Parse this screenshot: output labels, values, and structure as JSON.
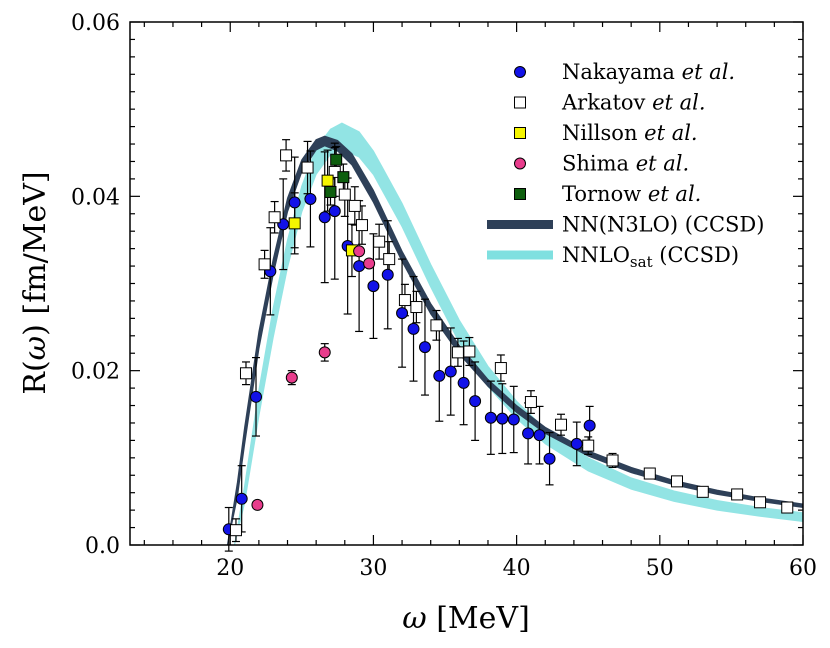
{
  "chart_data": {
    "type": "scatter",
    "xlabel": "ω [MeV]",
    "ylabel": "R(ω) [fm/MeV]",
    "xlim": [
      13,
      60
    ],
    "ylim": [
      0,
      0.06
    ],
    "x_ticks": [
      20,
      30,
      40,
      50,
      60
    ],
    "x_tick_labels": [
      "20",
      "30",
      "40",
      "50",
      "60"
    ],
    "y_ticks": [
      0.0,
      0.02,
      0.04,
      0.06
    ],
    "y_tick_labels": [
      "0.0",
      "0.02",
      "0.04",
      "0.06"
    ],
    "legend_position": "top-right",
    "series": [
      {
        "name": "Nakayama et al.",
        "legend_label": "Nakayama ",
        "legend_italic": "et al.",
        "kind": "points",
        "marker": "circle",
        "color": "#1212e8",
        "points": [
          {
            "x": 19.9,
            "y": 0.0018,
            "err": 0.0025
          },
          {
            "x": 20.8,
            "y": 0.0053,
            "err": 0.0038
          },
          {
            "x": 21.8,
            "y": 0.017,
            "err": 0.0045
          },
          {
            "x": 22.8,
            "y": 0.0314,
            "err": 0.005
          },
          {
            "x": 23.7,
            "y": 0.0368,
            "err": 0.0052
          },
          {
            "x": 24.5,
            "y": 0.0393,
            "err": 0.0052
          },
          {
            "x": 25.6,
            "y": 0.0397,
            "err": 0.0055
          },
          {
            "x": 26.6,
            "y": 0.0376,
            "err": 0.0075
          },
          {
            "x": 27.3,
            "y": 0.0383,
            "err": 0.0078
          },
          {
            "x": 28.2,
            "y": 0.0343,
            "err": 0.0078
          },
          {
            "x": 29.0,
            "y": 0.032,
            "err": 0.0075
          },
          {
            "x": 30.0,
            "y": 0.0297,
            "err": 0.006
          },
          {
            "x": 31.0,
            "y": 0.031,
            "err": 0.0062
          },
          {
            "x": 32.0,
            "y": 0.0266,
            "err": 0.0062
          },
          {
            "x": 32.8,
            "y": 0.0248,
            "err": 0.006
          },
          {
            "x": 33.6,
            "y": 0.0227,
            "err": 0.0055
          },
          {
            "x": 34.6,
            "y": 0.0194,
            "err": 0.0052
          },
          {
            "x": 35.4,
            "y": 0.0199,
            "err": 0.005
          },
          {
            "x": 36.3,
            "y": 0.0186,
            "err": 0.0048
          },
          {
            "x": 37.1,
            "y": 0.0165,
            "err": 0.0045
          },
          {
            "x": 38.2,
            "y": 0.0146,
            "err": 0.0042
          },
          {
            "x": 39.0,
            "y": 0.0145,
            "err": 0.004
          },
          {
            "x": 39.8,
            "y": 0.0144,
            "err": 0.0038
          },
          {
            "x": 40.8,
            "y": 0.0128,
            "err": 0.0035
          },
          {
            "x": 41.6,
            "y": 0.0126,
            "err": 0.0033
          },
          {
            "x": 42.3,
            "y": 0.0099,
            "err": 0.003
          },
          {
            "x": 44.2,
            "y": 0.0116,
            "err": 0.0025
          },
          {
            "x": 45.1,
            "y": 0.0137,
            "err": 0.0022
          }
        ]
      },
      {
        "name": "Arkatov et al.",
        "legend_label": "Arkatov ",
        "legend_italic": "et al.",
        "kind": "points",
        "marker": "square-open",
        "color": "#000000",
        "points": [
          {
            "x": 20.4,
            "y": 0.0017,
            "err": 0.0013
          },
          {
            "x": 21.1,
            "y": 0.0197,
            "err": 0.0013
          },
          {
            "x": 22.4,
            "y": 0.0322,
            "err": 0.0016
          },
          {
            "x": 23.1,
            "y": 0.0376,
            "err": 0.0018
          },
          {
            "x": 23.9,
            "y": 0.0447,
            "err": 0.0018
          },
          {
            "x": 25.4,
            "y": 0.0433,
            "err": 0.003
          },
          {
            "x": 27.3,
            "y": 0.0428,
            "err": 0.0028
          },
          {
            "x": 28.0,
            "y": 0.0402,
            "err": 0.0025
          },
          {
            "x": 28.7,
            "y": 0.0389,
            "err": 0.0022
          },
          {
            "x": 29.2,
            "y": 0.0367,
            "err": 0.0022
          },
          {
            "x": 30.4,
            "y": 0.0348,
            "err": 0.002
          },
          {
            "x": 31.1,
            "y": 0.0328,
            "err": 0.002
          },
          {
            "x": 32.2,
            "y": 0.0281,
            "err": 0.0018
          },
          {
            "x": 33.0,
            "y": 0.0273,
            "err": 0.0018
          },
          {
            "x": 34.4,
            "y": 0.0252,
            "err": 0.0017
          },
          {
            "x": 35.9,
            "y": 0.0221,
            "err": 0.0016
          },
          {
            "x": 36.7,
            "y": 0.0222,
            "err": 0.0016
          },
          {
            "x": 38.9,
            "y": 0.0203,
            "err": 0.0015
          },
          {
            "x": 41.0,
            "y": 0.0164,
            "err": 0.0013
          },
          {
            "x": 43.1,
            "y": 0.0138,
            "err": 0.0012
          },
          {
            "x": 45.0,
            "y": 0.0114,
            "err": 0.001
          },
          {
            "x": 46.7,
            "y": 0.0097,
            "err": 0.0008
          },
          {
            "x": 49.3,
            "y": 0.0082,
            "err": 0.0006
          },
          {
            "x": 51.2,
            "y": 0.0073,
            "err": 0.0005
          },
          {
            "x": 53.0,
            "y": 0.0061,
            "err": 0.0005
          },
          {
            "x": 55.4,
            "y": 0.0058,
            "err": 0.0004
          },
          {
            "x": 57.0,
            "y": 0.0049,
            "err": 0.0004
          },
          {
            "x": 58.9,
            "y": 0.0043,
            "err": 0.0004
          }
        ]
      },
      {
        "name": "Nillson et al.",
        "legend_label": "Nillson ",
        "legend_italic": "et al.",
        "kind": "points",
        "marker": "square",
        "color": "#f5f500",
        "points": [
          {
            "x": 24.5,
            "y": 0.0369,
            "err": 0.0035
          },
          {
            "x": 26.8,
            "y": 0.0418,
            "err": 0.0035
          },
          {
            "x": 28.5,
            "y": 0.0338,
            "err": 0.003
          }
        ]
      },
      {
        "name": "Shima et al.",
        "legend_label": "Shima ",
        "legend_italic": "et al.",
        "kind": "points",
        "marker": "circle",
        "color": "#e83c8c",
        "points": [
          {
            "x": 21.9,
            "y": 0.0046,
            "err": 0.0
          },
          {
            "x": 24.3,
            "y": 0.0192,
            "err": 0.0008
          },
          {
            "x": 26.6,
            "y": 0.0221,
            "err": 0.001
          },
          {
            "x": 29.7,
            "y": 0.0323,
            "err": 0.0
          },
          {
            "x": 29.0,
            "y": 0.0337,
            "err": 0.0
          }
        ]
      },
      {
        "name": "Tornow et al.",
        "legend_label": "Tornow ",
        "legend_italic": "et al.",
        "kind": "points",
        "marker": "square",
        "color": "#0e5e0e",
        "points": [
          {
            "x": 27.0,
            "y": 0.0405,
            "err": 0.0015
          },
          {
            "x": 27.4,
            "y": 0.0442,
            "err": 0.0015
          },
          {
            "x": 27.9,
            "y": 0.0422,
            "err": 0.0015
          }
        ]
      },
      {
        "name": "NN(N3LO) (CCSD)",
        "legend_label": "NN(N3LO) (CCSD)",
        "kind": "band",
        "color": "#2e4058",
        "points": [
          {
            "x": 19.8,
            "lo": 0.0,
            "hi": 0.0
          },
          {
            "x": 20.5,
            "lo": 0.0055,
            "hi": 0.0072
          },
          {
            "x": 21.0,
            "lo": 0.0115,
            "hi": 0.0135
          },
          {
            "x": 22.0,
            "lo": 0.0225,
            "hi": 0.0245
          },
          {
            "x": 23.0,
            "lo": 0.031,
            "hi": 0.0328
          },
          {
            "x": 24.0,
            "lo": 0.0382,
            "hi": 0.0398
          },
          {
            "x": 25.0,
            "lo": 0.0428,
            "hi": 0.0442
          },
          {
            "x": 26.0,
            "lo": 0.0453,
            "hi": 0.0465
          },
          {
            "x": 26.6,
            "lo": 0.0458,
            "hi": 0.0469
          },
          {
            "x": 27.5,
            "lo": 0.0452,
            "hi": 0.0464
          },
          {
            "x": 28.5,
            "lo": 0.0436,
            "hi": 0.0449
          },
          {
            "x": 30.0,
            "lo": 0.0393,
            "hi": 0.0407
          },
          {
            "x": 32.0,
            "lo": 0.0325,
            "hi": 0.0337
          },
          {
            "x": 34.0,
            "lo": 0.0265,
            "hi": 0.0277
          },
          {
            "x": 36.0,
            "lo": 0.0219,
            "hi": 0.0229
          },
          {
            "x": 38.0,
            "lo": 0.0182,
            "hi": 0.019
          },
          {
            "x": 40.0,
            "lo": 0.0152,
            "hi": 0.016
          },
          {
            "x": 42.0,
            "lo": 0.0128,
            "hi": 0.0135
          },
          {
            "x": 45.0,
            "lo": 0.0102,
            "hi": 0.0108
          },
          {
            "x": 48.0,
            "lo": 0.0083,
            "hi": 0.0089
          },
          {
            "x": 51.0,
            "lo": 0.0069,
            "hi": 0.0074
          },
          {
            "x": 54.0,
            "lo": 0.0058,
            "hi": 0.0063
          },
          {
            "x": 57.0,
            "lo": 0.005,
            "hi": 0.0054
          },
          {
            "x": 60.0,
            "lo": 0.0043,
            "hi": 0.0047
          }
        ]
      },
      {
        "name": "NNLOsat (CCSD)",
        "legend_label": "NNLO",
        "legend_sub": "sat",
        "legend_suffix": " (CCSD)",
        "kind": "band",
        "color": "#7fe0e0",
        "points": [
          {
            "x": 20.3,
            "lo": 0.0,
            "hi": 0.0
          },
          {
            "x": 21.0,
            "lo": 0.0048,
            "hi": 0.0068
          },
          {
            "x": 22.0,
            "lo": 0.0148,
            "hi": 0.0178
          },
          {
            "x": 23.0,
            "lo": 0.0238,
            "hi": 0.0272
          },
          {
            "x": 24.0,
            "lo": 0.0318,
            "hi": 0.035
          },
          {
            "x": 25.0,
            "lo": 0.0382,
            "hi": 0.0412
          },
          {
            "x": 26.0,
            "lo": 0.0425,
            "hi": 0.0455
          },
          {
            "x": 27.0,
            "lo": 0.0448,
            "hi": 0.0477
          },
          {
            "x": 27.8,
            "lo": 0.0454,
            "hi": 0.0484
          },
          {
            "x": 29.0,
            "lo": 0.0445,
            "hi": 0.0474
          },
          {
            "x": 30.0,
            "lo": 0.0425,
            "hi": 0.0452
          },
          {
            "x": 32.0,
            "lo": 0.0365,
            "hi": 0.0392
          },
          {
            "x": 34.0,
            "lo": 0.0296,
            "hi": 0.0322
          },
          {
            "x": 36.0,
            "lo": 0.0232,
            "hi": 0.0258
          },
          {
            "x": 38.0,
            "lo": 0.0182,
            "hi": 0.0205
          },
          {
            "x": 40.0,
            "lo": 0.0145,
            "hi": 0.0165
          },
          {
            "x": 42.0,
            "lo": 0.0116,
            "hi": 0.0133
          },
          {
            "x": 45.0,
            "lo": 0.0085,
            "hi": 0.01
          },
          {
            "x": 48.0,
            "lo": 0.0064,
            "hi": 0.0077
          },
          {
            "x": 51.0,
            "lo": 0.005,
            "hi": 0.0062
          },
          {
            "x": 54.0,
            "lo": 0.004,
            "hi": 0.0051
          },
          {
            "x": 57.0,
            "lo": 0.0033,
            "hi": 0.0043
          },
          {
            "x": 60.0,
            "lo": 0.0027,
            "hi": 0.0037
          }
        ]
      }
    ]
  }
}
